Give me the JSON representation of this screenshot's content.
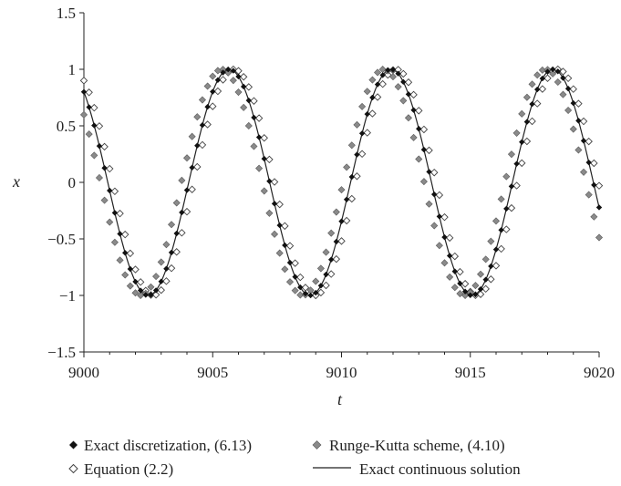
{
  "chart_data": {
    "type": "scatter",
    "xlabel": "t",
    "ylabel": "x",
    "xlim": [
      9000,
      9020
    ],
    "ylim": [
      -1.5,
      1.5
    ],
    "x_ticks": [
      9000,
      9005,
      9010,
      9015,
      9020
    ],
    "x_tick_labels": [
      "9000",
      "9005",
      "9010",
      "9015",
      "9020"
    ],
    "y_ticks": [
      1.5,
      1,
      0.5,
      0,
      -0.5,
      -1,
      -1.5
    ],
    "y_tick_labels": [
      "1.5",
      "1",
      "0.5",
      "0",
      "−0.5",
      "−1",
      "−1.5"
    ],
    "grid": false,
    "legend_position": "bottom",
    "series": [
      {
        "name": "Exact discretization, (6.13)",
        "marker": "filled-diamond",
        "color": "#111111",
        "sampling": {
          "t_start": 9000,
          "t_end": 9020,
          "step": 0.2
        },
        "model": {
          "amplitude": 1.0,
          "angular_frequency": 1.0,
          "phase": 0.6435
        }
      },
      {
        "name": "Runge-Kutta scheme, (4.10)",
        "marker": "gray-diamond",
        "color": "#8a8a8a",
        "sampling": {
          "t_start": 9000,
          "t_end": 9020,
          "step": 0.2
        },
        "model": {
          "amplitude": 1.0,
          "angular_frequency": 1.0,
          "phase": 0.93
        }
      },
      {
        "name": "Equation (2.2)",
        "marker": "open-diamond",
        "color": "#444444",
        "sampling": {
          "t_start": 9000,
          "t_end": 9020,
          "step": 0.2
        },
        "model": {
          "amplitude": 1.0,
          "angular_frequency": 1.0,
          "phase": 0.45
        }
      },
      {
        "name": "Exact continuous solution",
        "marker": "line",
        "color": "#222222",
        "sampling": {
          "t_start": 9000,
          "t_end": 9020,
          "step": 0.05
        },
        "model": {
          "amplitude": 1.0,
          "angular_frequency": 1.0,
          "phase": 0.6435
        }
      }
    ]
  }
}
